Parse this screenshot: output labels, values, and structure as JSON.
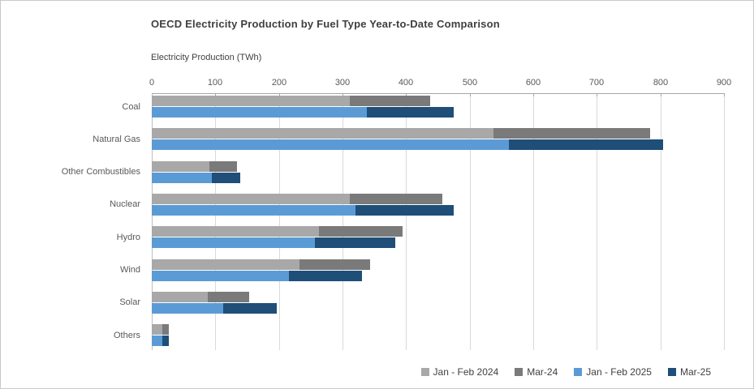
{
  "window": {
    "background": "#FFFFFF",
    "border_color": "#C9C9C9"
  },
  "chart_data": {
    "type": "bar",
    "orientation": "horizontal",
    "stacked": true,
    "grid": true,
    "legend_position": "bottom-right",
    "title": "OECD Electricity Production by Fuel Type Year-to-Date Comparison",
    "axis_title": "Electricity Production (TWh)",
    "xlim": [
      0,
      900
    ],
    "x_ticks": [
      0,
      100,
      200,
      300,
      400,
      500,
      600,
      700,
      800,
      900
    ],
    "categories": [
      "Coal",
      "Natural Gas",
      "Other Combustibles",
      "Nuclear",
      "Hydro",
      "Wind",
      "Solar",
      "Others"
    ],
    "series": [
      {
        "name": "Jan - Feb 2024",
        "color": "#A8A8A8",
        "group": "2024",
        "values": [
          312,
          538,
          90,
          311,
          263,
          232,
          88,
          16
        ]
      },
      {
        "name": "Mar-24",
        "color": "#7A7A7A",
        "group": "2024",
        "values": [
          126,
          246,
          43,
          146,
          132,
          111,
          65,
          10
        ]
      },
      {
        "name": "Jan - Feb 2025",
        "color": "#5B9BD5",
        "group": "2025",
        "values": [
          338,
          562,
          95,
          320,
          257,
          216,
          112,
          17
        ]
      },
      {
        "name": "Mar-25",
        "color": "#1F4E79",
        "group": "2025",
        "values": [
          137,
          242,
          45,
          154,
          126,
          115,
          84,
          10
        ]
      }
    ],
    "style": {
      "gridline_color": "#D9D9D9",
      "axis_line_color": "#A6A6A6",
      "zero_line_color": "#BFBFBF",
      "tick_label_color": "#595959",
      "title_color": "#3F3F3F",
      "legend_text_color": "#404040"
    }
  }
}
